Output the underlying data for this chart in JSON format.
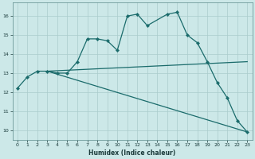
{
  "title": "",
  "xlabel": "Humidex (Indice chaleur)",
  "background_color": "#cce8e8",
  "grid_color": "#aacccc",
  "line_color": "#1a6b6b",
  "xlim": [
    -0.5,
    23.5
  ],
  "ylim": [
    9.5,
    16.7
  ],
  "xticks": [
    0,
    1,
    2,
    3,
    4,
    5,
    6,
    7,
    8,
    9,
    10,
    11,
    12,
    13,
    14,
    15,
    16,
    17,
    18,
    19,
    20,
    21,
    22,
    23
  ],
  "yticks": [
    10,
    11,
    12,
    13,
    14,
    15,
    16
  ],
  "series": [
    {
      "x": [
        0,
        1,
        2,
        3,
        4,
        5,
        6,
        7,
        8,
        9,
        10,
        11,
        12,
        13,
        15,
        16,
        17,
        18,
        19,
        20,
        21,
        22,
        23
      ],
      "y": [
        12.2,
        12.8,
        13.1,
        13.1,
        13.0,
        13.0,
        13.6,
        14.8,
        14.8,
        14.7,
        14.2,
        16.0,
        16.1,
        15.5,
        16.1,
        16.2,
        15.0,
        14.6,
        13.6,
        12.5,
        11.7,
        10.5,
        9.9
      ]
    },
    {
      "x": [
        3,
        23
      ],
      "y": [
        13.1,
        13.6
      ]
    },
    {
      "x": [
        3,
        23
      ],
      "y": [
        13.1,
        9.9
      ]
    }
  ]
}
